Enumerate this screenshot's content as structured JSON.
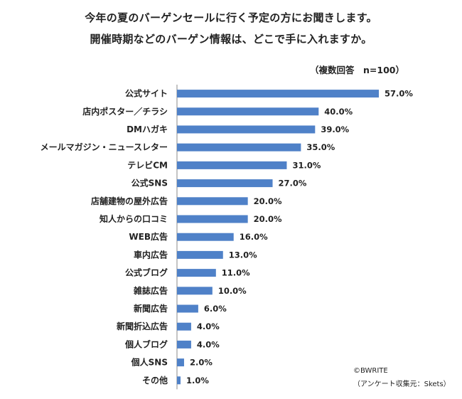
{
  "title": {
    "line1": "今年の夏のバーゲンセールに行く予定の方にお聞きします。",
    "line2": "開催時期などのバーゲン情報は、どこで手に入れますか。"
  },
  "subtitle": "（複数回答　n=100）",
  "credit": {
    "copyright": "©BWRITE",
    "source": "（アンケート収集元：Skets）"
  },
  "colors": {
    "bar": "#4f81c8",
    "axis": "#888888"
  },
  "chart_data": {
    "type": "bar",
    "orientation": "horizontal",
    "title": "今年の夏のバーゲンセールに行く予定の方にお聞きします。開催時期などのバーゲン情報は、どこで手に入れますか。",
    "subtitle": "（複数回答　n=100）",
    "xlabel": "",
    "ylabel": "",
    "grid": false,
    "xlim": [
      0,
      60
    ],
    "categories": [
      "公式サイト",
      "店内ポスター／チラシ",
      "DMハガキ",
      "メールマガジン・ニュースレター",
      "テレビCM",
      "公式SNS",
      "店舗建物の屋外広告",
      "知人からの口コミ",
      "WEB広告",
      "車内広告",
      "公式ブログ",
      "雑誌広告",
      "新聞広告",
      "新聞折込広告",
      "個人ブログ",
      "個人SNS",
      "その他"
    ],
    "values": [
      57.0,
      40.0,
      39.0,
      35.0,
      31.0,
      27.0,
      20.0,
      20.0,
      16.0,
      13.0,
      11.0,
      10.0,
      6.0,
      4.0,
      4.0,
      2.0,
      1.0
    ],
    "data_labels": [
      "57.0%",
      "40.0%",
      "39.0%",
      "35.0%",
      "31.0%",
      "27.0%",
      "20.0%",
      "20.0%",
      "16.0%",
      "13.0%",
      "11.0%",
      "10.0%",
      "6.0%",
      "4.0%",
      "4.0%",
      "2.0%",
      "1.0%"
    ]
  }
}
